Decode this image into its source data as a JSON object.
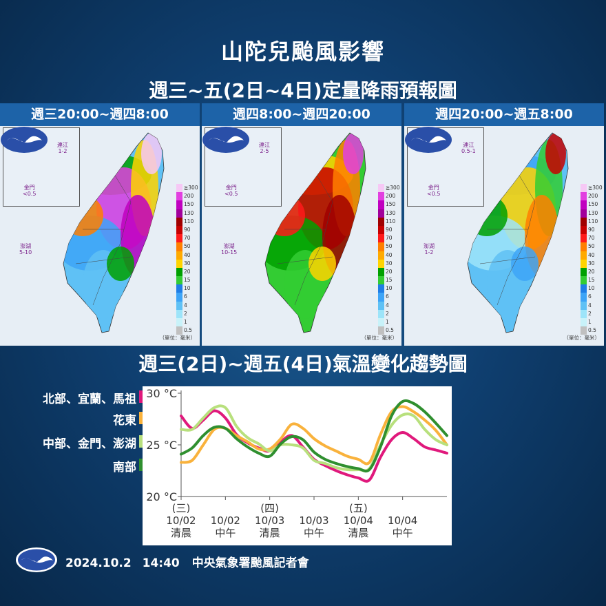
{
  "header": {
    "title": "山陀兒颱風影響",
    "subtitle": "週三~五(2日~4日)定量降雨預報圖"
  },
  "panels": [
    {
      "label": "週三20:00~週四8:00",
      "matsu": "連江\n1-2",
      "kinmen": "金門\n<0.5",
      "penghu": "澎湖\n5-10"
    },
    {
      "label": "週四8:00~週四20:00",
      "matsu": "連江\n2-5",
      "kinmen": "金門\n<0.5",
      "penghu": "澎湖\n10-15"
    },
    {
      "label": "週四20:00~週五8:00",
      "matsu": "連江\n0.5-1",
      "kinmen": "金門\n<0.5",
      "penghu": "澎湖\n1-2"
    }
  ],
  "rain_legend": {
    "labels": [
      "≧300",
      "200",
      "150",
      "130",
      "110",
      "90",
      "70",
      "50",
      "40",
      "30",
      "20",
      "15",
      "10",
      "6",
      "4",
      "2",
      "1",
      "0.5"
    ],
    "colors": [
      "#f6c8f5",
      "#e23fe0",
      "#c000c0",
      "#a2009b",
      "#a00000",
      "#c80000",
      "#ff1a1a",
      "#ff7f00",
      "#ffaa00",
      "#ffd400",
      "#00a000",
      "#33cc33",
      "#1f7ee6",
      "#3da4f7",
      "#5fc1f5",
      "#9de4f9",
      "#c8f2f9",
      "#c0c0c0"
    ],
    "unit": "（單位：毫米）"
  },
  "temperature_chart_title": "週三(2日)~週五(4日)氣溫變化趨勢圖",
  "chart_data": {
    "type": "line",
    "title": "",
    "xlabel": "",
    "ylabel": "",
    "ylim": [
      20,
      30
    ],
    "yticks": [
      "30 °C",
      "25 °C",
      "20 °C"
    ],
    "x_ticks": [
      {
        "day": "(三)",
        "date": "10/02",
        "time": "清晨"
      },
      {
        "day": "",
        "date": "10/02",
        "time": "中午"
      },
      {
        "day": "(四)",
        "date": "10/03",
        "time": "清晨"
      },
      {
        "day": "",
        "date": "10/03",
        "time": "中午"
      },
      {
        "day": "(五)",
        "date": "10/04",
        "time": "清晨"
      },
      {
        "day": "",
        "date": "10/04",
        "time": "中午"
      }
    ],
    "x": [
      0,
      0.25,
      0.5,
      0.75,
      1,
      1.25,
      1.5,
      1.75,
      2,
      2.25,
      2.5,
      2.75,
      3,
      3.25,
      3.5,
      3.75,
      4,
      4.25,
      4.5,
      4.75,
      5,
      5.25,
      5.5,
      5.75,
      6
    ],
    "series": [
      {
        "name": "北部、宜蘭、馬祖",
        "color": "#e0197c",
        "values": [
          27.8,
          26.6,
          27.4,
          28.3,
          27.6,
          26.0,
          25.2,
          24.7,
          24.4,
          25.3,
          25.9,
          24.8,
          23.6,
          23.0,
          22.5,
          22.1,
          21.8,
          21.6,
          23.8,
          25.5,
          26.2,
          25.6,
          24.8,
          24.5,
          24.2
        ]
      },
      {
        "name": "花東",
        "color": "#f9b23c",
        "values": [
          23.3,
          23.5,
          25.0,
          26.5,
          26.6,
          25.9,
          25.3,
          24.6,
          24.6,
          25.6,
          27.0,
          26.6,
          25.6,
          24.9,
          24.4,
          23.9,
          23.6,
          23.3,
          26.0,
          28.2,
          28.7,
          28.2,
          27.4,
          26.4,
          25.0
        ]
      },
      {
        "name": "中部、金門、澎湖",
        "color": "#b8e07d",
        "values": [
          26.5,
          26.5,
          27.6,
          28.6,
          28.6,
          26.8,
          25.7,
          25.1,
          24.4,
          25.0,
          25.0,
          24.7,
          23.5,
          23.2,
          22.8,
          22.6,
          22.6,
          22.7,
          25.0,
          26.9,
          27.9,
          27.8,
          26.5,
          25.5,
          25.0
        ]
      },
      {
        "name": "南部",
        "color": "#2f8f2f",
        "values": [
          24.1,
          24.7,
          25.9,
          26.7,
          26.6,
          25.6,
          24.8,
          24.2,
          23.9,
          25.1,
          25.8,
          25.5,
          24.3,
          23.6,
          23.2,
          22.9,
          22.7,
          22.6,
          24.8,
          27.8,
          29.2,
          29.0,
          28.2,
          27.1,
          25.9
        ]
      }
    ]
  },
  "footer": {
    "date": "2024.10.2",
    "time": "14:40",
    "org": "中央氣象署颱風記者會"
  }
}
